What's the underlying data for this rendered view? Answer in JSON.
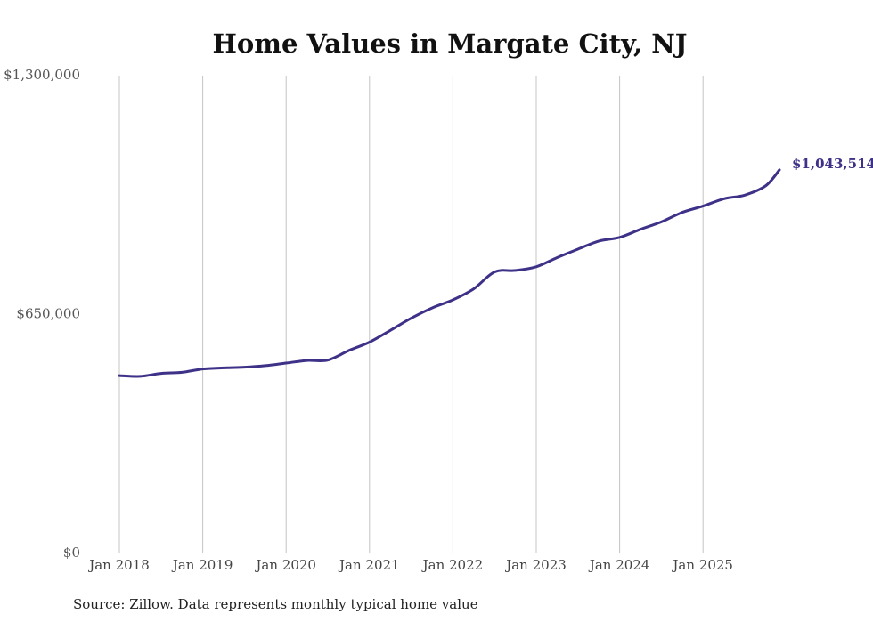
{
  "chart_data": {
    "type": "line",
    "title": "Home Values in Margate City, NJ",
    "xlabel": "",
    "ylabel": "",
    "x_tick_labels": [
      "Jan 2018",
      "Jan 2019",
      "Jan 2020",
      "Jan 2021",
      "Jan 2022",
      "Jan 2023",
      "Jan 2024",
      "Jan 2025"
    ],
    "x_tick_years": [
      2018,
      2019,
      2020,
      2021,
      2022,
      2023,
      2024,
      2025
    ],
    "x_range": [
      2018.0,
      2025.917
    ],
    "y_tick_labels": [
      "$0",
      "$650,000",
      "$1,300,000"
    ],
    "y_tick_values": [
      0,
      650000,
      1300000
    ],
    "ylim": [
      0,
      1300000
    ],
    "grid": "vertical",
    "end_label": "$1,043,514",
    "line_color": "#3d3188",
    "series": [
      {
        "name": "Typical home value",
        "x": [
          2018.0,
          2018.25,
          2018.5,
          2018.75,
          2019.0,
          2019.25,
          2019.5,
          2019.75,
          2020.0,
          2020.25,
          2020.5,
          2020.75,
          2021.0,
          2021.25,
          2021.5,
          2021.75,
          2022.0,
          2022.25,
          2022.5,
          2022.75,
          2023.0,
          2023.25,
          2023.5,
          2023.75,
          2024.0,
          2024.25,
          2024.5,
          2024.75,
          2025.0,
          2025.25,
          2025.5,
          2025.75,
          2025.917
        ],
        "values": [
          484000,
          482000,
          490000,
          493000,
          502000,
          505000,
          507000,
          511000,
          518000,
          525000,
          526000,
          552000,
          575000,
          607000,
          640000,
          668000,
          690000,
          720000,
          766000,
          770000,
          780000,
          805000,
          828000,
          850000,
          860000,
          882000,
          902000,
          928000,
          945000,
          965000,
          975000,
          1000000,
          1043514
        ]
      }
    ]
  },
  "source_note": "Source: Zillow. Data represents monthly typical home value"
}
